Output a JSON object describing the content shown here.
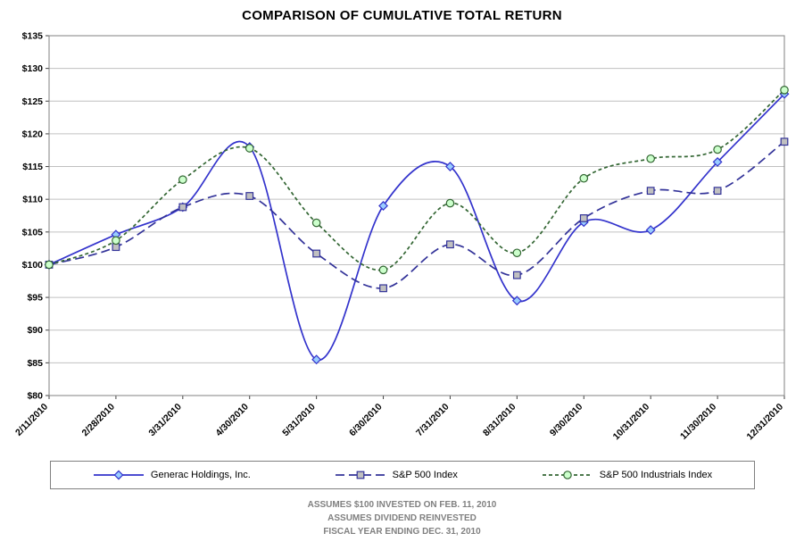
{
  "title": "COMPARISON OF CUMULATIVE TOTAL RETURN",
  "footer": {
    "line1": "ASSUMES $100 INVESTED ON FEB. 11, 2010",
    "line2": "ASSUMES DIVIDEND REINVESTED",
    "line3": "FISCAL YEAR ENDING DEC. 31, 2010"
  },
  "chart_data": {
    "type": "line",
    "title": "COMPARISON OF CUMULATIVE TOTAL RETURN",
    "categories": [
      "2/11/2010",
      "2/28/2010",
      "3/31/2010",
      "4/30/2010",
      "5/31/2010",
      "6/30/2010",
      "7/31/2010",
      "8/31/2010",
      "9/30/2010",
      "10/31/2010",
      "11/30/2010",
      "12/31/2010"
    ],
    "series": [
      {
        "name": "Generac Holdings, Inc.",
        "values": [
          100,
          104.6,
          108.8,
          118.0,
          85.5,
          109.0,
          115.0,
          94.5,
          106.5,
          105.3,
          115.7,
          126.1
        ],
        "line_color": "#3333CC",
        "dash": "",
        "marker": "diamond",
        "marker_fill": "#99CCFF"
      },
      {
        "name": "S&P 500 Index",
        "values": [
          100,
          102.7,
          108.8,
          110.5,
          101.7,
          96.4,
          103.1,
          98.4,
          107.1,
          111.3,
          111.3,
          118.8
        ],
        "line_color": "#333399",
        "dash": "10,5",
        "marker": "square",
        "marker_fill": "#C0C0C0"
      },
      {
        "name": "S&P 500 Industrials Index",
        "values": [
          100,
          103.7,
          113.0,
          117.8,
          106.4,
          99.2,
          109.4,
          101.8,
          113.2,
          116.2,
          117.6,
          126.7
        ],
        "line_color": "#336633",
        "dash": "4,3",
        "marker": "circle",
        "marker_fill": "#CCFFCC"
      }
    ],
    "ylim": [
      80,
      135
    ],
    "ytick_step": 5,
    "ytick_prefix": "$",
    "grid": "horizontal",
    "gridline_color": "#C0C0C0",
    "axis_color": "#808080",
    "tick_color": "#404040",
    "legend_position": "bottom",
    "smooth": true
  }
}
